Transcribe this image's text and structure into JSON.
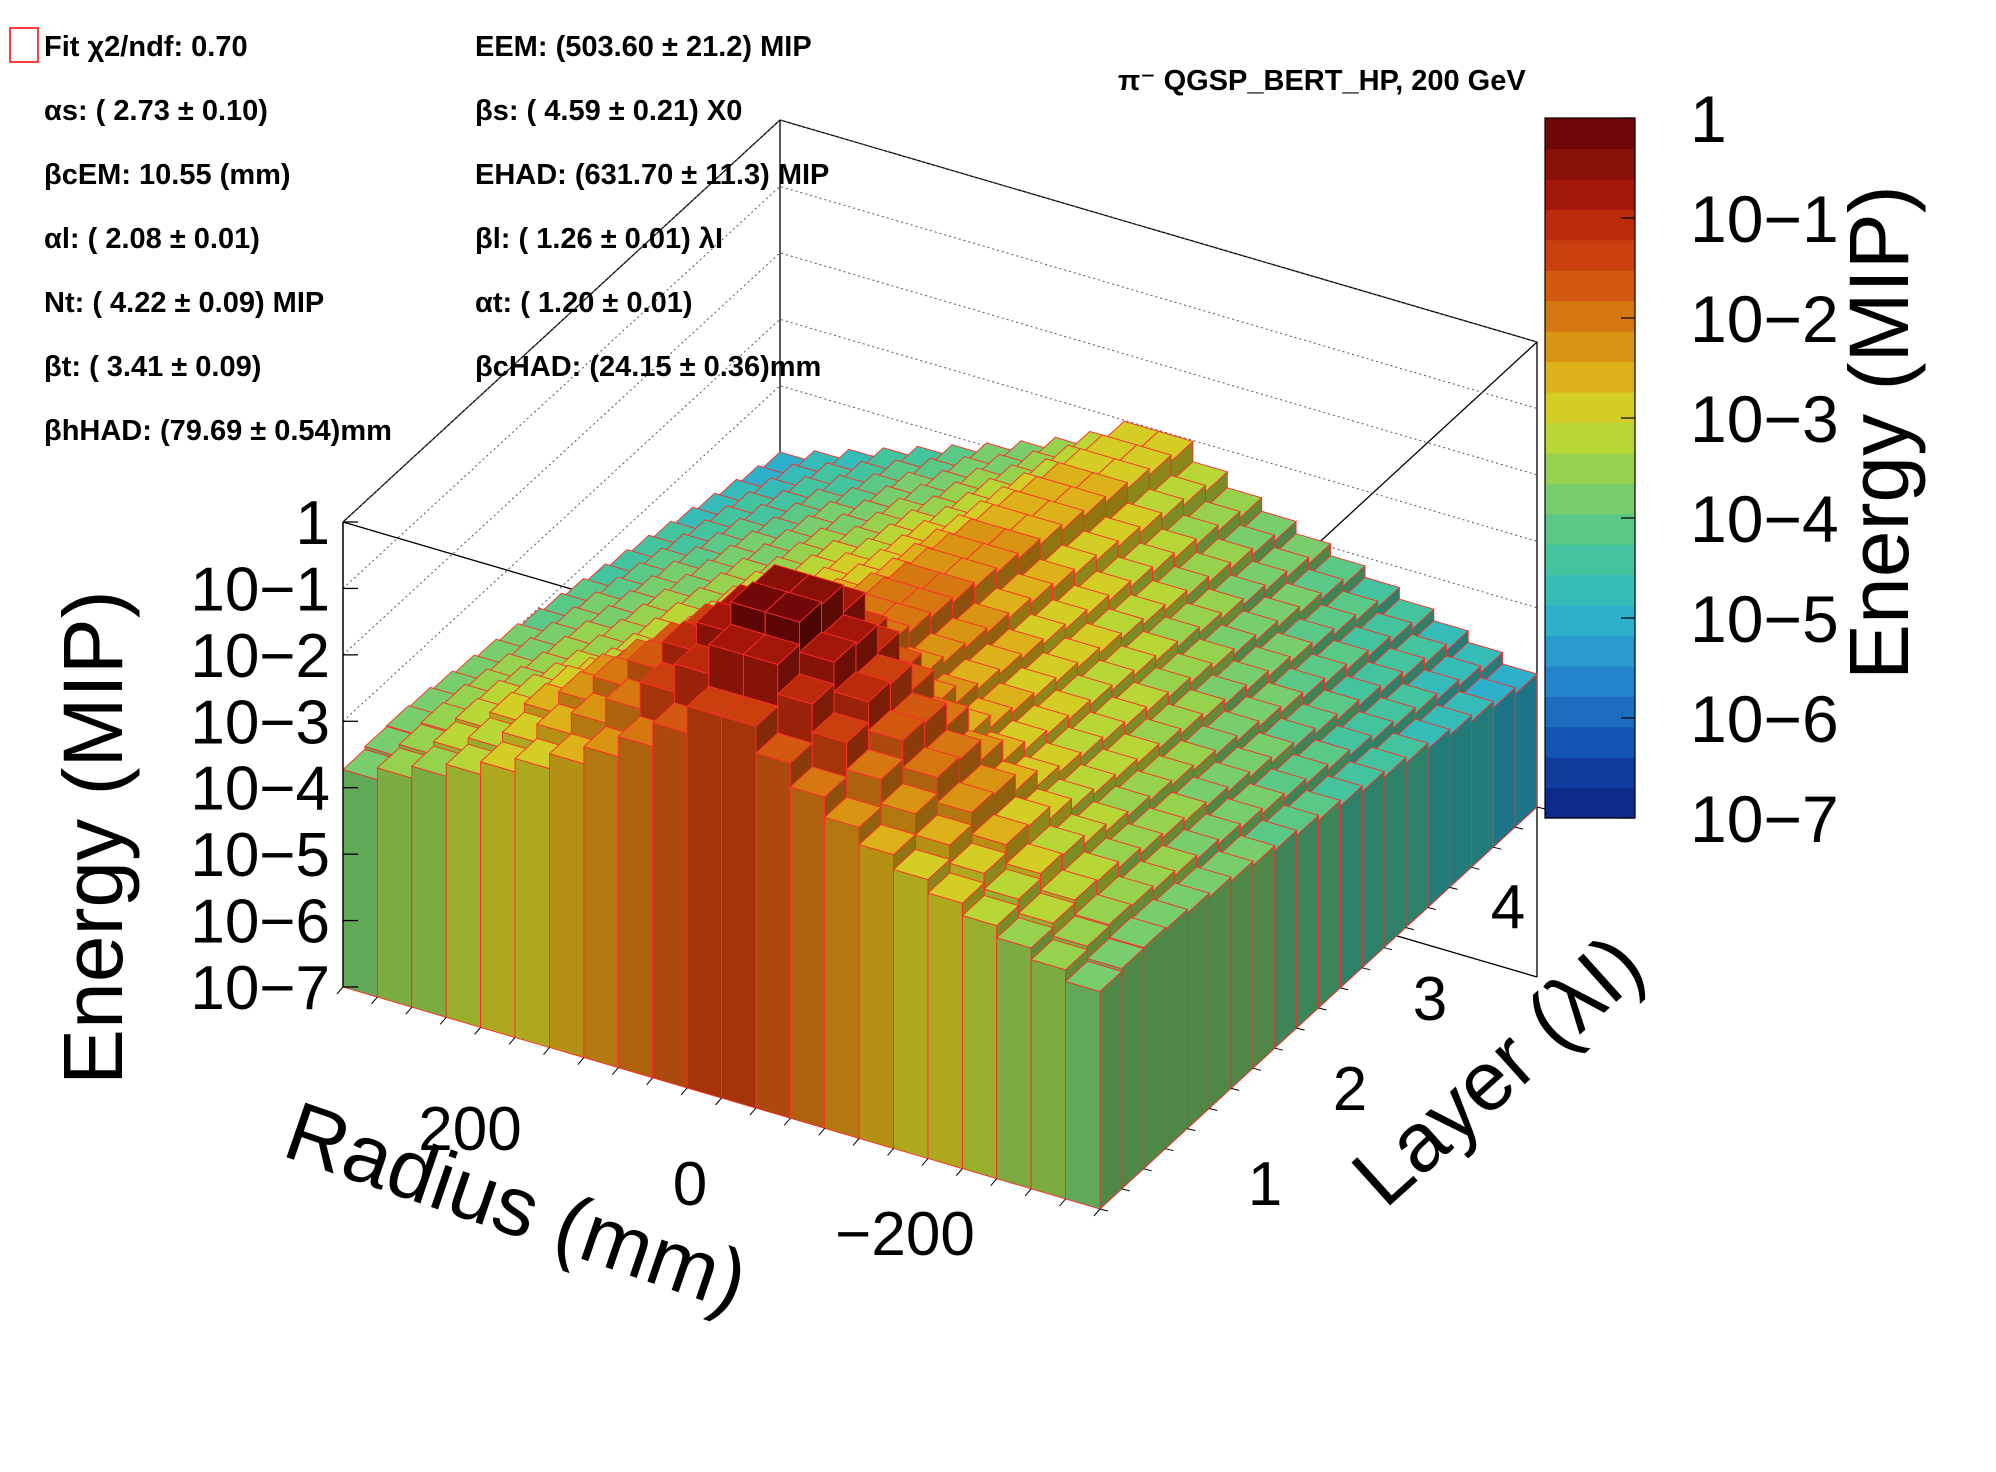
{
  "chart_data": {
    "type": "lego-3d",
    "title": "π⁻ QGSP_BERT_HP, 200 GeV",
    "xlabel": "Radius (mm)",
    "ylabel": "Layer (λI)",
    "zlabel": "Energy (MIP)",
    "colorbar_label": "Energy (MIP)",
    "z_scale": "log",
    "zlim": [
      1e-07,
      1
    ],
    "x_ticks": [
      "200",
      "0",
      "−200"
    ],
    "y_ticks": [
      "1",
      "2",
      "3",
      "4"
    ],
    "z_ticks": [
      "1",
      "10−1",
      "10−2",
      "10−3",
      "10−4",
      "10−5",
      "10−6",
      "10−7"
    ],
    "colorbar_ticks": [
      "1",
      "10−1",
      "10−2",
      "10−3",
      "10−4",
      "10−5",
      "10−6",
      "10−7"
    ],
    "legend": {
      "marker_color": "#ff0000",
      "entries": [
        {
          "name": "Fit",
          "label": "χ2/ndf:",
          "value": "0.70"
        },
        {
          "name": "E_EM",
          "label": "EEM:",
          "value": "(503.60 ± 21.2) MIP"
        },
        {
          "name": "alpha_s",
          "label": "αs:",
          "value": "( 2.73 ± 0.10)"
        },
        {
          "name": "beta_s",
          "label": "βs:",
          "value": "( 4.59 ± 0.21) X0"
        },
        {
          "name": "beta_c_EM",
          "label": "βcEM:",
          "value": "10.55 (mm)"
        },
        {
          "name": "E_HAD",
          "label": "EHAD:",
          "value": "(631.70 ± 11.3) MIP"
        },
        {
          "name": "alpha_l",
          "label": "αl:",
          "value": "( 2.08 ± 0.01)"
        },
        {
          "name": "beta_l",
          "label": "βl:",
          "value": "( 1.26 ± 0.01) λI"
        },
        {
          "name": "N_t",
          "label": "Nt:",
          "value": "( 4.22 ± 0.09) MIP"
        },
        {
          "name": "alpha_t",
          "label": "αt:",
          "value": "( 1.20 ± 0.01)"
        },
        {
          "name": "beta_t",
          "label": "βt:",
          "value": "( 3.41 ± 0.09)"
        },
        {
          "name": "beta_c_HAD",
          "label": "βcHAD:",
          "value": "(24.15 ± 0.36)mm"
        },
        {
          "name": "beta_h_HAD",
          "label": "βhHAD:",
          "value": "(79.69 ± 0.54)mm"
        }
      ]
    },
    "colormap": [
      "#0b2a8a",
      "#103c9e",
      "#1553b0",
      "#1c6cc0",
      "#2384cb",
      "#2a9bd0",
      "#2eb0cc",
      "#35bcb8",
      "#43c49e",
      "#5ac987",
      "#78cd6c",
      "#97d24f",
      "#b8d636",
      "#d3cd25",
      "#dcb119",
      "#da9414",
      "#d67711",
      "#d2590f",
      "#c9400d",
      "#bb2a0b",
      "#a3170a",
      "#881009",
      "#700808"
    ],
    "fit_params": {
      "E_EM": 503.6,
      "alpha_s": 2.73,
      "beta_s": 4.59,
      "beta_c_EM_mm": 10.55,
      "E_HAD": 631.7,
      "alpha_l": 2.08,
      "beta_l": 1.26,
      "N_t": 4.22,
      "alpha_t": 1.2,
      "beta_t": 3.41,
      "beta_c_HAD_mm": 24.15,
      "beta_h_HAD_mm": 79.69
    },
    "radius_range_mm": [
      -350,
      350
    ],
    "layer_range": [
      0.4,
      4.2
    ]
  }
}
